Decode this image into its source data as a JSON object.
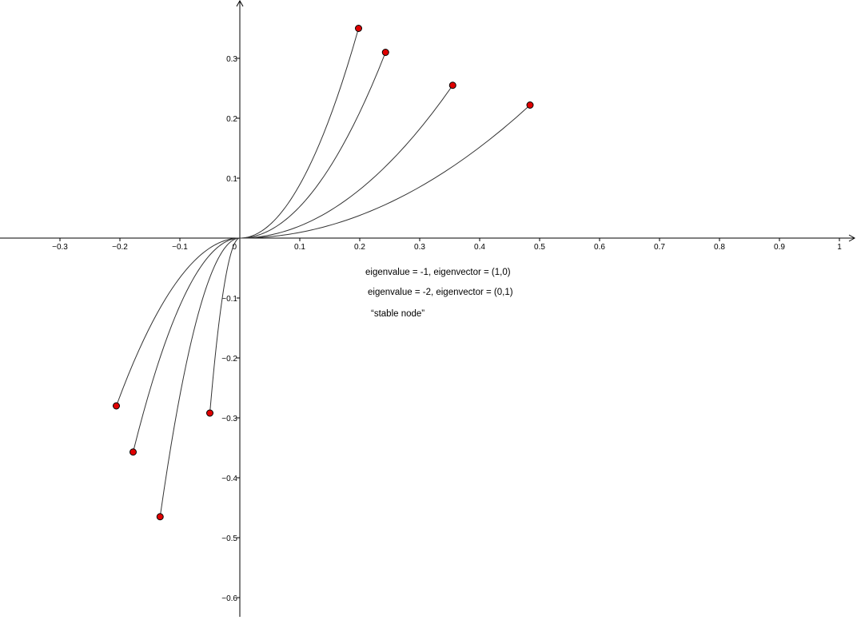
{
  "chart_data": {
    "type": "line",
    "title": "",
    "xlabel": "",
    "ylabel": "",
    "xlim": [
      -0.4,
      1.03
    ],
    "ylim": [
      -0.63,
      0.39
    ],
    "grid": false,
    "x_ticks": [
      -0.3,
      -0.2,
      -0.1,
      0.1,
      0.2,
      0.3,
      0.4,
      0.5,
      0.6,
      0.7,
      0.8,
      0.9,
      1
    ],
    "x_tick_labels": [
      "−0.3",
      "−0.2",
      "−0.1",
      "0.1",
      "0.2",
      "0.3",
      "0.4",
      "0.5",
      "0.6",
      "0.7",
      "0.8",
      "0.9",
      "1"
    ],
    "y_ticks": [
      0.3,
      0.2,
      0.1,
      -0.1,
      -0.2,
      -0.3,
      -0.4,
      -0.5,
      -0.6
    ],
    "y_tick_labels": [
      "0.3",
      "0.2",
      "0.1",
      "−0.1",
      "−0.2",
      "−0.3",
      "−0.4",
      "−0.5",
      "−0.6"
    ],
    "origin_label": "0",
    "curve_color": "#333333",
    "point_color": "#e00000",
    "start_points": [
      {
        "x": 0.198,
        "y": 0.35
      },
      {
        "x": 0.243,
        "y": 0.31
      },
      {
        "x": 0.355,
        "y": 0.255
      },
      {
        "x": 0.484,
        "y": 0.222
      },
      {
        "x": -0.206,
        "y": -0.28
      },
      {
        "x": -0.178,
        "y": -0.357
      },
      {
        "x": -0.133,
        "y": -0.465
      },
      {
        "x": -0.05,
        "y": -0.292
      }
    ]
  },
  "annotations": {
    "line1": "eigenvalue = -1, eigenvector = (1,0)",
    "line2": "eigenvalue = -2, eigenvector = (0,1)",
    "line3": "“stable node”"
  }
}
